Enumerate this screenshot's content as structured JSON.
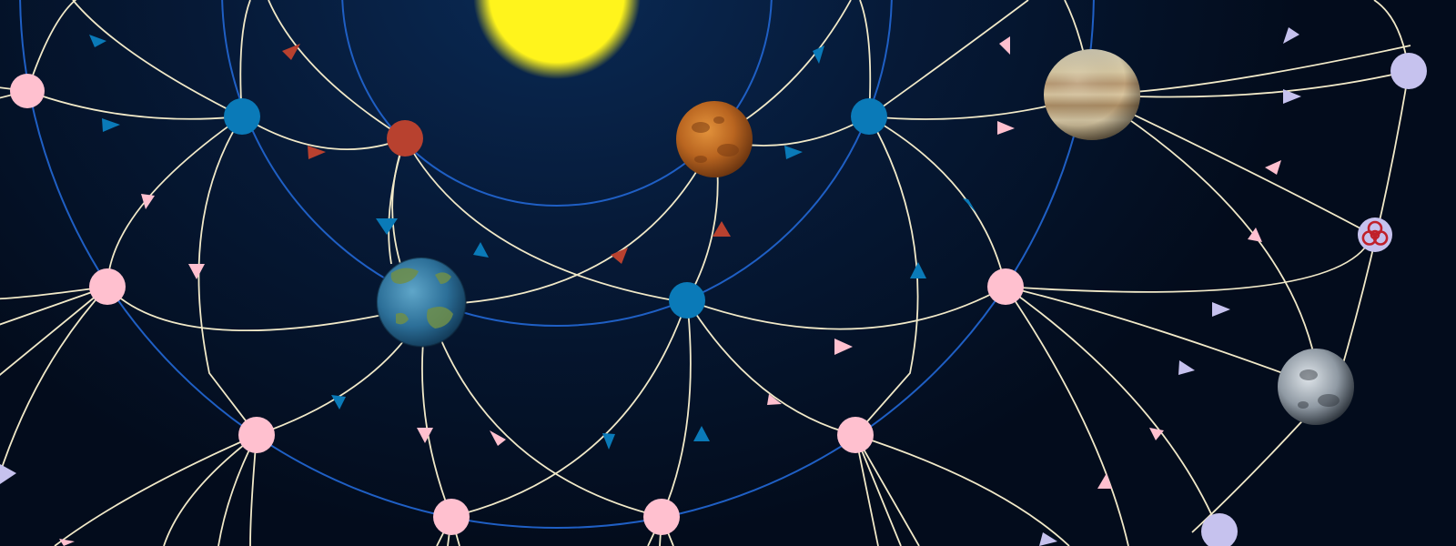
{
  "colors": {
    "background": "#030c1c",
    "orbit": "#1f5fc4",
    "lane": "#f1e9c8",
    "sun": "#fff41c",
    "owner_blue": "#0a7ab8",
    "owner_red": "#b8412f",
    "neutral_pink": "#ffc0cf",
    "unexplored_lavender": "#c6c2ee",
    "hazard": "#c0202a"
  },
  "sun": {
    "name": "sun",
    "icon": "sun-icon"
  },
  "nodes": [
    {
      "id": "p-nw",
      "kind": "pink"
    },
    {
      "id": "b1",
      "kind": "blue"
    },
    {
      "id": "r1",
      "kind": "red"
    },
    {
      "id": "mars",
      "kind": "planet-rust"
    },
    {
      "id": "b2",
      "kind": "blue"
    },
    {
      "id": "jupiter",
      "kind": "planet-gas-giant"
    },
    {
      "id": "l-ne",
      "kind": "lavender"
    },
    {
      "id": "biohazard",
      "kind": "hazard",
      "icon": "biohazard-icon"
    },
    {
      "id": "p-w",
      "kind": "pink"
    },
    {
      "id": "earth",
      "kind": "planet-terran"
    },
    {
      "id": "b3",
      "kind": "blue"
    },
    {
      "id": "p-e",
      "kind": "pink"
    },
    {
      "id": "moon",
      "kind": "planet-barren"
    },
    {
      "id": "p-sw",
      "kind": "pink"
    },
    {
      "id": "p-s1",
      "kind": "pink"
    },
    {
      "id": "p-s2",
      "kind": "pink"
    },
    {
      "id": "p-se",
      "kind": "pink"
    },
    {
      "id": "l-se",
      "kind": "lavender"
    }
  ]
}
